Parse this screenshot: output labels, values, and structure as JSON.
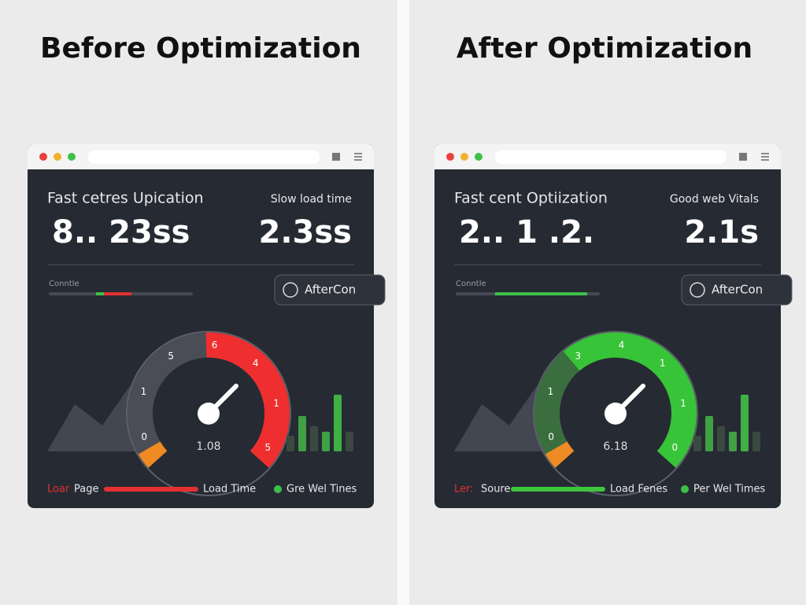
{
  "headers": [
    "Before Optimization",
    "After Optimization"
  ],
  "panels": [
    {
      "heading": "Fast cetres Upication",
      "status": "Slow load time",
      "metric_main": "8.. 23ss",
      "metric_side": "2.3ss",
      "progress_label": "Conntle",
      "button": "AfterCon",
      "gauge_labels": [
        "0",
        "1",
        "5",
        "6",
        "4",
        "1",
        "5"
      ],
      "gauge_value": "1.08",
      "footer": [
        "Loar",
        "Page",
        "Load Time",
        "Gre Wel Tines"
      ]
    },
    {
      "heading": "Fast cent Optiization",
      "status": "Good web Vitals",
      "metric_main": "2.. 1 .2.",
      "metric_side": "2.1s",
      "progress_label": "Conntle",
      "button": "AfterCon",
      "gauge_labels": [
        "0",
        "1",
        "3",
        "4",
        "1",
        "1",
        "0"
      ],
      "gauge_value": "6.18",
      "footer": [
        "Ler:",
        "Soure",
        "Load Fenes",
        "Per Wel Times"
      ]
    }
  ]
}
